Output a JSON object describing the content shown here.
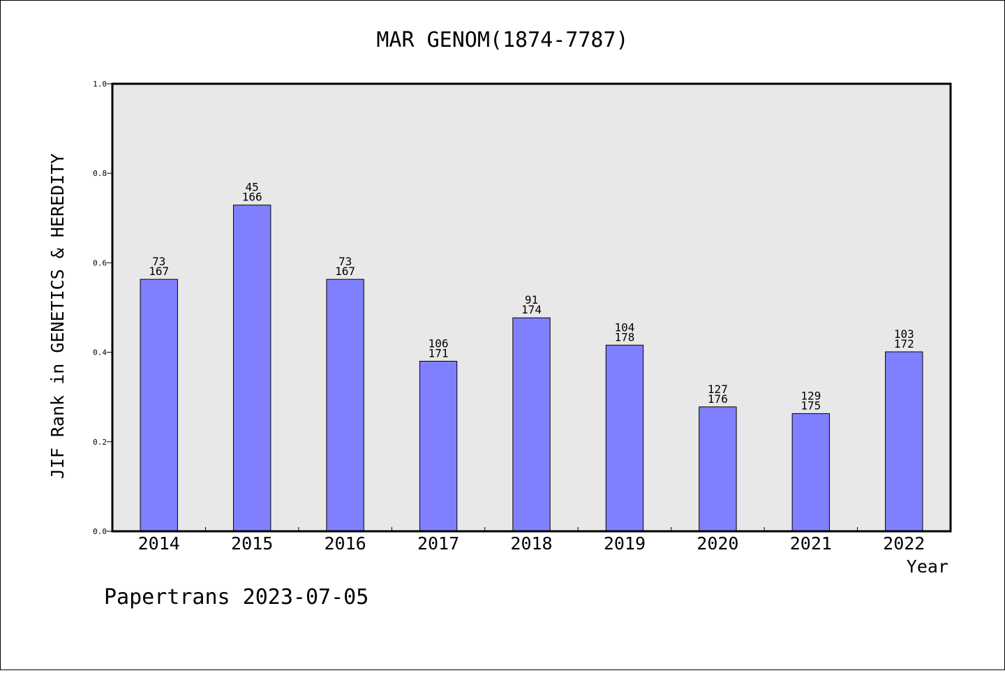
{
  "chart_data": {
    "type": "bar",
    "title": "MAR GENOM(1874-7787)",
    "xlabel": "Year",
    "ylabel": "JIF Rank in GENETICS & HEREDITY",
    "ylim": [
      0,
      1.0
    ],
    "yticks": [
      "0.0",
      "0.2",
      "0.4",
      "0.6",
      "0.8",
      "1.0"
    ],
    "grid": false,
    "categories": [
      "2014",
      "2015",
      "2016",
      "2017",
      "2018",
      "2019",
      "2020",
      "2021",
      "2022"
    ],
    "values": [
      0.563,
      0.729,
      0.563,
      0.38,
      0.477,
      0.416,
      0.278,
      0.263,
      0.401
    ],
    "rank": [
      "73",
      "45",
      "73",
      "106",
      "91",
      "104",
      "127",
      "129",
      "103"
    ],
    "total": [
      "167",
      "166",
      "167",
      "171",
      "174",
      "178",
      "176",
      "175",
      "172"
    ],
    "colors": {
      "bar": "#8080ff",
      "plot_bg": "#e8e8e8"
    }
  },
  "footer": "Papertrans 2023-07-05"
}
